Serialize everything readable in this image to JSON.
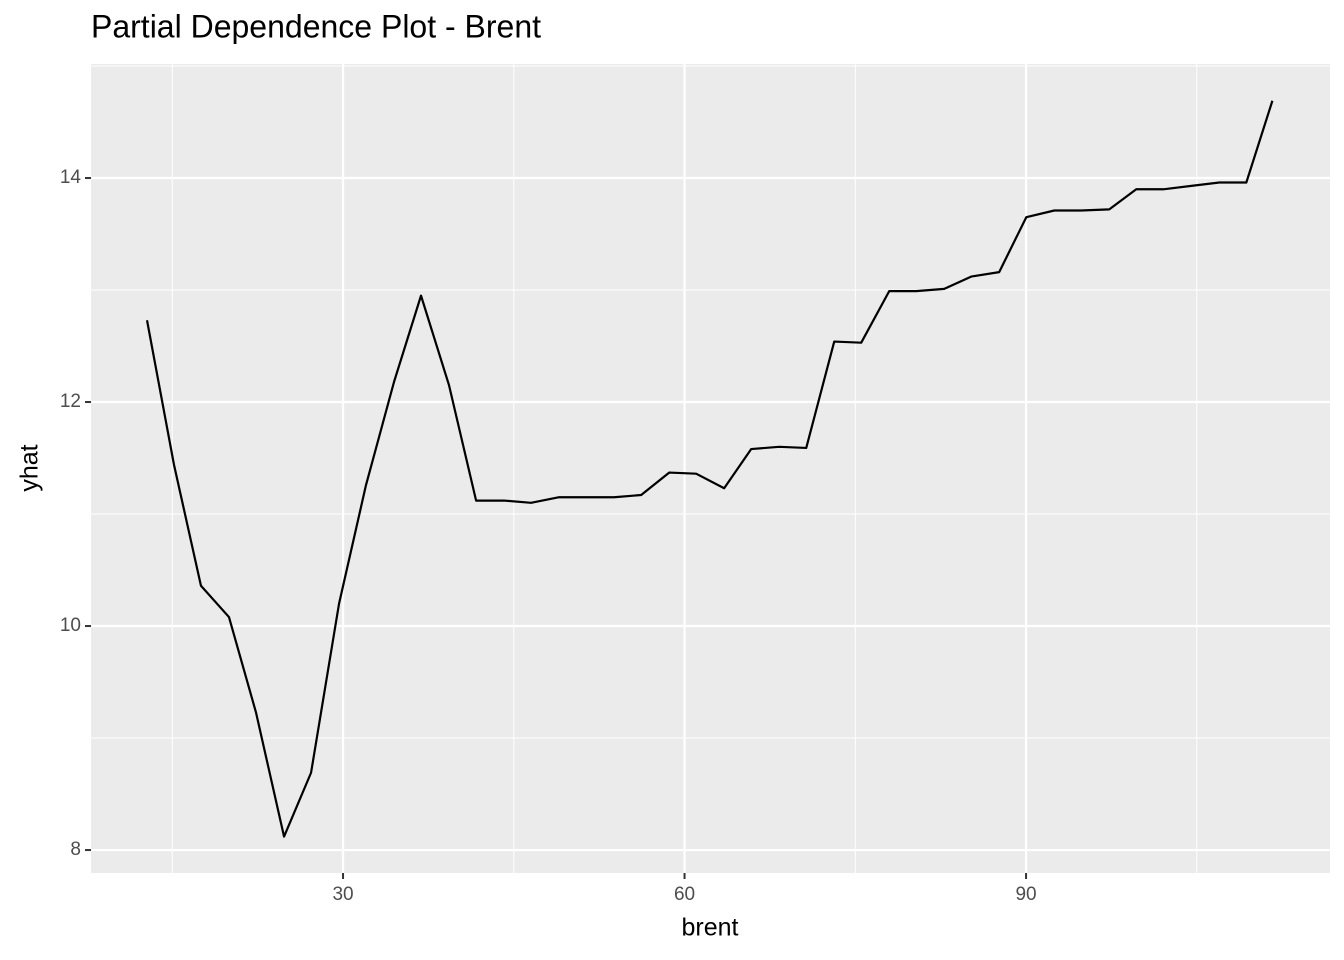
{
  "chart_data": {
    "type": "line",
    "title": "Partial Dependence Plot - Brent",
    "x_label": "brent",
    "y_label": "yhat",
    "x": [
      12.78,
      15.15,
      17.52,
      19.98,
      22.35,
      24.82,
      27.19,
      29.65,
      32.02,
      34.48,
      36.85,
      39.31,
      41.69,
      44.15,
      46.52,
      48.98,
      51.35,
      53.81,
      56.19,
      58.65,
      61.02,
      63.48,
      65.85,
      68.31,
      70.69,
      73.15,
      75.52,
      77.98,
      80.35,
      82.81,
      85.18,
      87.64,
      90.02,
      92.48,
      94.85,
      97.31,
      99.68,
      102.14,
      104.52,
      106.98,
      109.35,
      111.64
    ],
    "series": [
      {
        "name": "yhat",
        "color": "#000000",
        "values": [
          12.73,
          11.44,
          10.36,
          10.08,
          9.23,
          8.12,
          8.69,
          10.2,
          11.26,
          12.18,
          12.95,
          12.15,
          11.12,
          11.12,
          11.1,
          11.15,
          11.15,
          11.15,
          11.17,
          11.37,
          11.36,
          11.23,
          11.58,
          11.6,
          11.59,
          12.54,
          12.53,
          12.99,
          12.99,
          13.01,
          13.12,
          13.16,
          13.65,
          13.71,
          13.71,
          13.72,
          13.9,
          13.9,
          13.93,
          13.96,
          13.96,
          14.69
        ]
      }
    ],
    "xlim": [
      7.86,
      116.7
    ],
    "ylim": [
      7.795,
      15.018
    ],
    "xticks": [
      30,
      60,
      90
    ],
    "yticks": [
      8,
      10,
      12,
      14
    ],
    "grid": true
  }
}
